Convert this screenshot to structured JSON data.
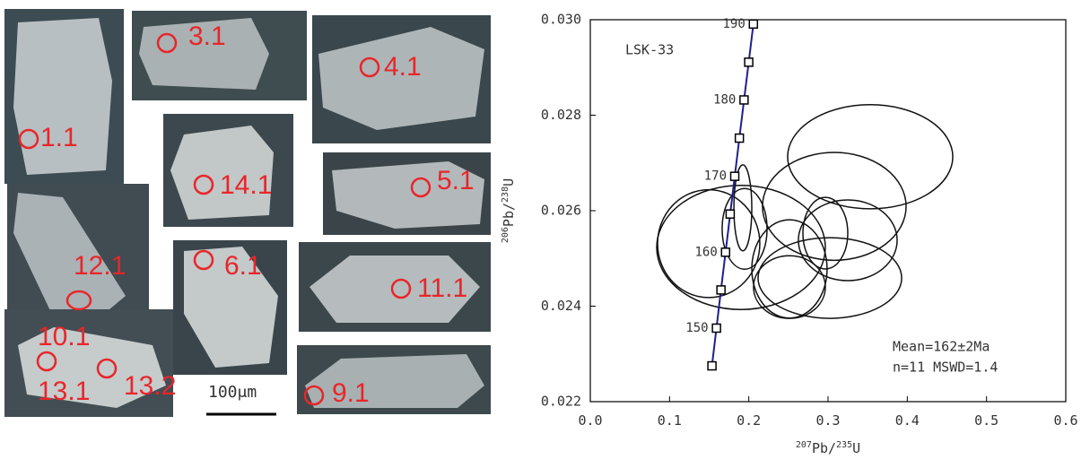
{
  "cl_image": {
    "spot_labels": [
      "3.1",
      "4.1",
      "1.1",
      "14.1",
      "5.1",
      "12.1",
      "6.1",
      "11.1",
      "10.1",
      "13.1",
      "13.2",
      "9.1"
    ],
    "scale_bar": "100μm"
  },
  "chart_data": {
    "type": "concordia",
    "annotation": "LSK-33",
    "summary": [
      "Mean=162±2Ma",
      "n=11 MSWD=1.4"
    ],
    "x_label": [
      "207",
      "Pb/",
      "235",
      "U"
    ],
    "y_label": [
      "206",
      "Pb/",
      "238",
      "U"
    ],
    "xlim": [
      0,
      0.6
    ],
    "xticks": [
      {
        "value": 0,
        "label": "0.0"
      },
      0.1,
      0.2,
      0.3,
      0.4,
      0.5,
      0.6
    ],
    "ylim": [
      0.022,
      0.03
    ],
    "yticks": [
      0.022,
      0.024,
      0.026,
      0.028,
      {
        "value": 0.03,
        "label": "0.030"
      }
    ],
    "concordia": {
      "color": "#1f1f8f",
      "categories": [
        null,
        150,
        null,
        160,
        null,
        170,
        null,
        180,
        null,
        190
      ],
      "x": [
        0.1535,
        0.1592,
        0.1649,
        0.1707,
        0.1765,
        0.1823,
        0.1881,
        0.194,
        0.1999,
        0.2058
      ],
      "y": [
        0.02275,
        0.02354,
        0.02434,
        0.02513,
        0.02593,
        0.02672,
        0.02752,
        0.02832,
        0.02911,
        0.02991
      ]
    },
    "ellipses": {
      "color": "#111111",
      "x": [
        0.3532,
        0.1494,
        0.1902,
        0.1925,
        0.1947,
        0.3079,
        0.3249,
        0.3023,
        0.2513,
        0.2966,
        0.2513
      ],
      "y": [
        0.02713,
        0.02531,
        0.02523,
        0.02606,
        0.02562,
        0.02609,
        0.02538,
        0.02459,
        0.02478,
        0.02553,
        0.0244
      ],
      "x_err": [
        0.1042,
        0.0645,
        0.1064,
        0.0113,
        0.0283,
        0.0906,
        0.0623,
        0.0906,
        0.0475,
        0.0283,
        0.0453
      ],
      "y_err": [
        0.00109,
        0.00113,
        0.0013,
        0.0009,
        0.000845,
        0.00113,
        0.000845,
        0.000845,
        0.00103,
        0.00075,
        0.000657
      ]
    }
  }
}
